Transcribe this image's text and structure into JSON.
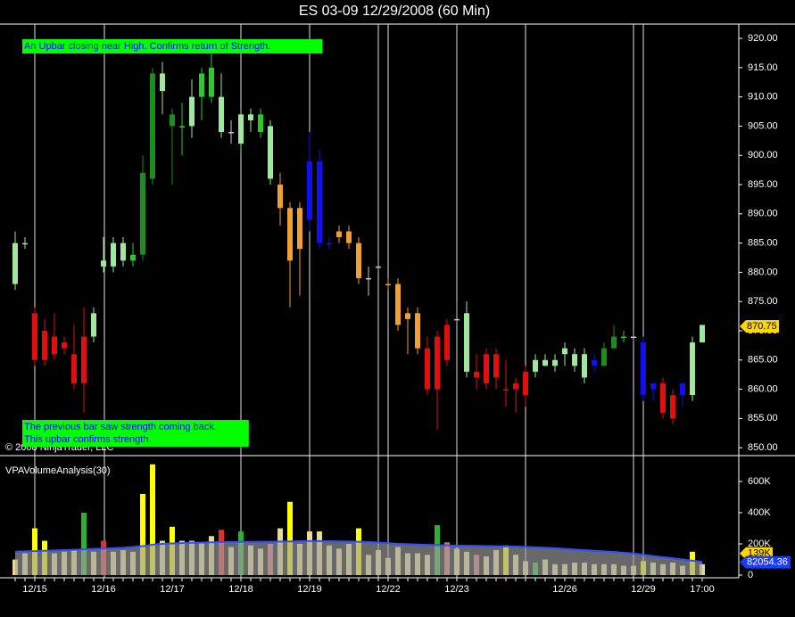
{
  "chart_data": [
    {
      "type": "candlestick",
      "title": "ES 03-09  12/29/2008 (60 Min)",
      "open": [
        878,
        885,
        873,
        870,
        869,
        868,
        866,
        869,
        869,
        881,
        881,
        882,
        882,
        883,
        896,
        911,
        905,
        905,
        905,
        910,
        910,
        904,
        904,
        902,
        906,
        904,
        896,
        895,
        891,
        891,
        899,
        899,
        885,
        887,
        887,
        885,
        879,
        881,
        878,
        878,
        873,
        873,
        867,
        869,
        871,
        872,
        863,
        863,
        866,
        866,
        860,
        861,
        863,
        863,
        864,
        864,
        866,
        864,
        862,
        865,
        864,
        867,
        869,
        869,
        868,
        861,
        861,
        859,
        861,
        859,
        868
      ],
      "high": [
        887,
        886,
        874,
        872,
        873,
        869,
        871,
        874,
        874,
        886,
        886,
        886,
        885,
        900,
        915,
        916,
        908,
        909,
        913,
        915,
        918,
        914,
        906,
        908,
        908,
        908,
        906,
        897,
        892,
        892,
        904,
        901,
        886,
        888,
        888,
        886,
        881,
        882,
        879,
        879,
        874,
        874,
        869,
        870,
        872,
        875,
        875,
        866,
        867,
        867,
        865,
        862,
        864,
        866,
        866,
        866,
        868,
        867,
        867,
        866,
        868,
        871,
        870,
        870,
        869,
        861,
        862,
        860,
        861,
        869,
        871
      ],
      "low": [
        877,
        884,
        864,
        864,
        865,
        866,
        860,
        856,
        868,
        880,
        880,
        881,
        881,
        882,
        895,
        907,
        895,
        900,
        903,
        906,
        909,
        903,
        902,
        900,
        904,
        903,
        895,
        888,
        874,
        876,
        887,
        884,
        884,
        885,
        884,
        878,
        876,
        880,
        877,
        870,
        866,
        866,
        859,
        853,
        864,
        871,
        862,
        860,
        860,
        860,
        857,
        856,
        857,
        862,
        864,
        863,
        864,
        863,
        861,
        863,
        864,
        867,
        868,
        868,
        858,
        858,
        855,
        854,
        857,
        858,
        868
      ],
      "close": [
        885,
        885,
        865,
        865,
        866,
        867,
        861,
        861,
        873,
        882,
        885,
        885,
        883,
        897,
        914,
        914,
        907,
        905,
        910,
        914,
        915,
        910,
        904,
        907,
        907,
        907,
        905,
        891,
        882,
        884,
        889,
        885,
        885,
        886,
        885,
        879,
        879,
        881,
        878,
        871,
        872,
        867,
        860,
        860,
        865,
        872,
        873,
        862,
        861,
        862,
        860,
        860,
        859,
        865,
        865,
        865,
        867,
        866,
        866,
        864,
        867,
        869,
        869,
        869,
        859,
        860,
        856,
        855,
        859,
        868,
        871
      ],
      "colors": [
        "#a0e8a0",
        "#c8c8c8",
        "#e01010",
        "#e01010",
        "#e01010",
        "#e01010",
        "#e01010",
        "#e01010",
        "#a0e8a0",
        "#a0e8a0",
        "#a0e8a0",
        "#a0e8a0",
        "#2cc82c",
        "#1e8c1e",
        "#1e8c1e",
        "#a0e8a0",
        "#1e8c1e",
        "#2cc82c",
        "#a0e8a0",
        "#2cc82c",
        "#2cc82c",
        "#a0e8a0",
        "#c8c8c8",
        "#a0e8a0",
        "#a0e8a0",
        "#2cc82c",
        "#a0e8a0",
        "#f0a030",
        "#f0a030",
        "#f0a030",
        "#1010f0",
        "#1010f0",
        "#1010f0",
        "#f0a030",
        "#f0a030",
        "#f0a030",
        "#c8c8c8",
        "#c8c8c8",
        "#f0a030",
        "#f0a030",
        "#f0a030",
        "#f0a030",
        "#e01010",
        "#e01010",
        "#e01010",
        "#c8c8c8",
        "#a0e8a0",
        "#e01010",
        "#e01010",
        "#e01010",
        "#e01010",
        "#e01010",
        "#e01010",
        "#a0e8a0",
        "#a0e8a0",
        "#a0e8a0",
        "#a0e8a0",
        "#a0e8a0",
        "#a0e8a0",
        "#1010f0",
        "#1e8c1e",
        "#1e8c1e",
        "#2cc82c",
        "#c8c8c8",
        "#1010f0",
        "#1010f0",
        "#e01010",
        "#e01010",
        "#1010f0",
        "#a0e8a0",
        "#a0e8a0"
      ],
      "ylim": [
        848.8,
        922.3
      ],
      "yticks": [
        {
          "value": 850,
          "label": "850.00"
        },
        {
          "value": 855,
          "label": "855.00"
        },
        {
          "value": 860,
          "label": "860.00"
        },
        {
          "value": 865,
          "label": "865.00"
        },
        {
          "value": 870,
          "label": "870.00"
        },
        {
          "value": 875,
          "label": "875.00"
        },
        {
          "value": 880,
          "label": "880.00"
        },
        {
          "value": 885,
          "label": "885.00"
        },
        {
          "value": 890,
          "label": "890.00"
        },
        {
          "value": 895,
          "label": "895.00"
        },
        {
          "value": 900,
          "label": "900.00"
        },
        {
          "value": 905,
          "label": "905.00"
        },
        {
          "value": 910,
          "label": "910.00"
        },
        {
          "value": 915,
          "label": "915.00"
        },
        {
          "value": 920,
          "label": "920.00"
        }
      ],
      "current_price": 870.75,
      "annotations": [
        {
          "lines": [
            "An Upbar closing near High. Confirms return of Strength."
          ]
        },
        {
          "lines": [
            "The previous bar saw strength coming back.",
            "This upbar confirms strength."
          ]
        }
      ],
      "copyright": "© 2008 NinjaTrader, LLC"
    },
    {
      "type": "volume",
      "title": "VPAVolumeAnalysis(30)",
      "categories": [
        null,
        null,
        "12/15",
        null,
        null,
        null,
        null,
        null,
        null,
        "12/16",
        null,
        null,
        null,
        null,
        null,
        null,
        "12/17",
        null,
        null,
        null,
        null,
        null,
        null,
        "12/18",
        null,
        null,
        null,
        null,
        null,
        null,
        "12/19",
        null,
        null,
        null,
        null,
        null,
        null,
        null,
        "12/22",
        null,
        null,
        null,
        null,
        null,
        null,
        "12/23",
        null,
        null,
        null,
        null,
        null,
        null,
        null,
        null,
        null,
        null,
        "12/26",
        null,
        null,
        null,
        null,
        null,
        null,
        null,
        "12/29",
        null,
        null,
        null,
        null,
        null,
        "17:00"
      ],
      "values": [
        100000,
        140000,
        300000,
        220000,
        140000,
        150000,
        160000,
        400000,
        150000,
        220000,
        150000,
        160000,
        150000,
        520000,
        710000,
        220000,
        310000,
        220000,
        220000,
        210000,
        250000,
        290000,
        180000,
        280000,
        190000,
        170000,
        200000,
        300000,
        470000,
        200000,
        280000,
        280000,
        190000,
        170000,
        200000,
        300000,
        130000,
        160000,
        110000,
        180000,
        140000,
        140000,
        130000,
        320000,
        210000,
        170000,
        150000,
        130000,
        120000,
        160000,
        190000,
        130000,
        90000,
        80000,
        100000,
        70000,
        70000,
        80000,
        80000,
        70000,
        70000,
        70000,
        60000,
        60000,
        90000,
        80000,
        70000,
        80000,
        60000,
        150000,
        70000
      ],
      "colors": [
        "#e6dc8c",
        "#e6dc8c",
        "#ffff00",
        "#ffff00",
        "#e6dc8c",
        "#e6dc8c",
        "#e6dc8c",
        "#30b030",
        "#e6dc8c",
        "#e03030",
        "#e6dc8c",
        "#e6dc8c",
        "#e6dc8c",
        "#ffff00",
        "#ffff00",
        "#e6dc8c",
        "#ffff00",
        "#e6dc8c",
        "#e6dc8c",
        "#e6dc8c",
        "#e6dc8c",
        "#e03030",
        "#e6dc8c",
        "#30b030",
        "#e6dc8c",
        "#e6dc8c",
        "#d07070",
        "#e6dc8c",
        "#ffff00",
        "#e6dc8c",
        "#e6dc8c",
        "#e6dc8c",
        "#e6dc8c",
        "#e6dc8c",
        "#e6dc8c",
        "#ffff00",
        "#e6dc8c",
        "#e6dc8c",
        "#e6dc8c",
        "#e6dc8c",
        "#e6dc8c",
        "#e6dc8c",
        "#e6dc8c",
        "#30b030",
        "#d07070",
        "#e6dc8c",
        "#e6dc8c",
        "#d07070",
        "#e6dc8c",
        "#e6dc8c",
        "#ffff00",
        "#e6dc8c",
        "#e6dc8c",
        "#30b030",
        "#e6dc8c",
        "#e6dc8c",
        "#e6dc8c",
        "#e6dc8c",
        "#e6dc8c",
        "#e6dc8c",
        "#e6dc8c",
        "#e6dc8c",
        "#e6dc8c",
        "#e6dc8c",
        "#ffff00",
        "#e6dc8c",
        "#e6dc8c",
        "#e6dc8c",
        "#e6dc8c",
        "#ffff00",
        "#e6dc8c"
      ],
      "average": [
        150000,
        152000,
        154000,
        156000,
        158000,
        160000,
        162000,
        165000,
        168000,
        170000,
        172000,
        175000,
        180000,
        186000,
        195000,
        200000,
        203000,
        205000,
        207000,
        208000,
        210000,
        212000,
        212000,
        213000,
        213000,
        214000,
        214000,
        215000,
        216000,
        217000,
        218000,
        218000,
        217000,
        216000,
        215000,
        214000,
        212000,
        208000,
        205000,
        200000,
        198000,
        196000,
        194000,
        192000,
        190000,
        189000,
        188000,
        187000,
        186000,
        185000,
        184000,
        183000,
        181000,
        178000,
        175000,
        172000,
        168000,
        164000,
        160000,
        156000,
        152000,
        148000,
        144000,
        138000,
        130000,
        122000,
        115000,
        108000,
        100000,
        92000,
        85000
      ],
      "ylim": [
        -17000,
        760000
      ],
      "yticks": [
        0,
        {
          "value": 200000,
          "label": "200K"
        },
        {
          "value": 400000,
          "label": "400K"
        },
        {
          "value": 600000,
          "label": "600K"
        }
      ],
      "current_volume": {
        "value": 139000,
        "label": "139K"
      },
      "current_average": 82054.36
    }
  ]
}
